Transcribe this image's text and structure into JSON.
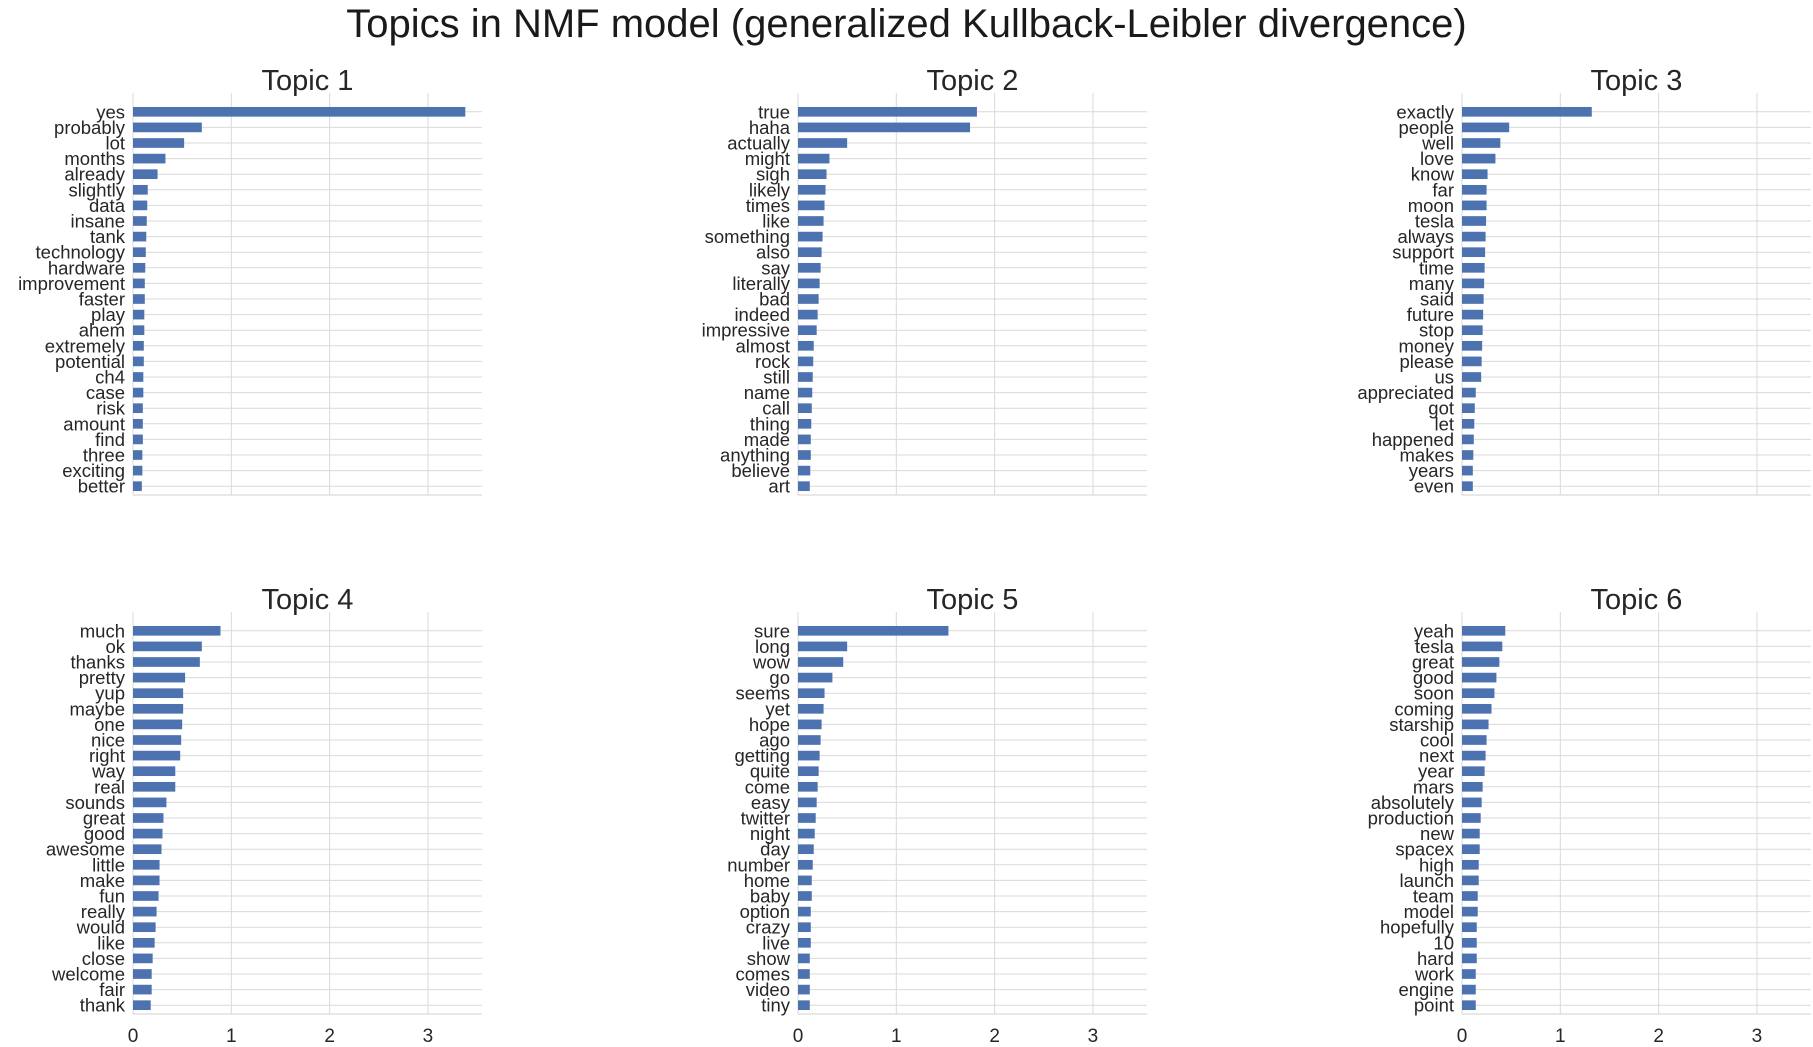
{
  "suptitle": "Topics in NMF model (generalized Kullback-Leibler divergence)",
  "colors": {
    "bar": "#4c72b0",
    "grid": "#d9d9d9",
    "text": "#262626"
  },
  "chart_data": [
    {
      "type": "bar",
      "orientation": "horizontal",
      "title": "Topic 1",
      "xlim": [
        0,
        3.55
      ],
      "xticks": [
        0,
        1,
        2,
        3
      ],
      "show_xticklabels": false,
      "grid": "x",
      "categories": [
        "yes",
        "probably",
        "lot",
        "months",
        "already",
        "slightly",
        "data",
        "insane",
        "tank",
        "technology",
        "hardware",
        "improvement",
        "faster",
        "play",
        "ahem",
        "extremely",
        "potential",
        "ch4",
        "case",
        "risk",
        "amount",
        "find",
        "three",
        "exciting",
        "better"
      ],
      "values": [
        3.38,
        0.7,
        0.52,
        0.33,
        0.25,
        0.15,
        0.145,
        0.14,
        0.135,
        0.13,
        0.125,
        0.12,
        0.12,
        0.115,
        0.115,
        0.11,
        0.11,
        0.105,
        0.105,
        0.1,
        0.1,
        0.1,
        0.095,
        0.095,
        0.09
      ]
    },
    {
      "type": "bar",
      "orientation": "horizontal",
      "title": "Topic 2",
      "xlim": [
        0,
        3.55
      ],
      "xticks": [
        0,
        1,
        2,
        3
      ],
      "show_xticklabels": false,
      "grid": "x",
      "categories": [
        "true",
        "haha",
        "actually",
        "might",
        "sigh",
        "likely",
        "times",
        "like",
        "something",
        "also",
        "say",
        "literally",
        "bad",
        "indeed",
        "impressive",
        "almost",
        "rock",
        "still",
        "name",
        "call",
        "thing",
        "made",
        "anything",
        "believe",
        "art"
      ],
      "values": [
        1.82,
        1.75,
        0.5,
        0.32,
        0.29,
        0.28,
        0.27,
        0.26,
        0.25,
        0.24,
        0.23,
        0.22,
        0.21,
        0.2,
        0.19,
        0.16,
        0.155,
        0.15,
        0.145,
        0.14,
        0.135,
        0.13,
        0.13,
        0.125,
        0.12
      ]
    },
    {
      "type": "bar",
      "orientation": "horizontal",
      "title": "Topic 3",
      "xlim": [
        0,
        3.55
      ],
      "xticks": [
        0,
        1,
        2,
        3
      ],
      "show_xticklabels": false,
      "grid": "x",
      "categories": [
        "exactly",
        "people",
        "well",
        "love",
        "know",
        "far",
        "moon",
        "tesla",
        "always",
        "support",
        "time",
        "many",
        "said",
        "future",
        "stop",
        "money",
        "please",
        "us",
        "appreciated",
        "got",
        "let",
        "happened",
        "makes",
        "years",
        "even"
      ],
      "values": [
        1.32,
        0.48,
        0.39,
        0.34,
        0.26,
        0.25,
        0.25,
        0.245,
        0.24,
        0.235,
        0.23,
        0.225,
        0.22,
        0.215,
        0.21,
        0.205,
        0.2,
        0.195,
        0.14,
        0.13,
        0.125,
        0.12,
        0.115,
        0.11,
        0.11
      ]
    },
    {
      "type": "bar",
      "orientation": "horizontal",
      "title": "Topic 4",
      "xlim": [
        0,
        3.55
      ],
      "xticks": [
        0,
        1,
        2,
        3
      ],
      "show_xticklabels": true,
      "grid": "x",
      "categories": [
        "much",
        "ok",
        "thanks",
        "pretty",
        "yup",
        "maybe",
        "one",
        "nice",
        "right",
        "way",
        "real",
        "sounds",
        "great",
        "good",
        "awesome",
        "little",
        "make",
        "fun",
        "really",
        "would",
        "like",
        "close",
        "welcome",
        "fair",
        "thank"
      ],
      "values": [
        0.89,
        0.7,
        0.68,
        0.53,
        0.51,
        0.51,
        0.5,
        0.49,
        0.48,
        0.43,
        0.43,
        0.34,
        0.31,
        0.3,
        0.29,
        0.27,
        0.27,
        0.26,
        0.24,
        0.23,
        0.22,
        0.2,
        0.19,
        0.19,
        0.18
      ]
    },
    {
      "type": "bar",
      "orientation": "horizontal",
      "title": "Topic 5",
      "xlim": [
        0,
        3.55
      ],
      "xticks": [
        0,
        1,
        2,
        3
      ],
      "show_xticklabels": true,
      "grid": "x",
      "categories": [
        "sure",
        "long",
        "wow",
        "go",
        "seems",
        "yet",
        "hope",
        "ago",
        "getting",
        "quite",
        "come",
        "easy",
        "twitter",
        "night",
        "day",
        "number",
        "home",
        "baby",
        "option",
        "crazy",
        "live",
        "show",
        "comes",
        "video",
        "tiny"
      ],
      "values": [
        1.53,
        0.5,
        0.46,
        0.35,
        0.27,
        0.26,
        0.24,
        0.23,
        0.22,
        0.21,
        0.2,
        0.19,
        0.18,
        0.17,
        0.16,
        0.15,
        0.14,
        0.14,
        0.13,
        0.13,
        0.13,
        0.12,
        0.12,
        0.12,
        0.12
      ]
    },
    {
      "type": "bar",
      "orientation": "horizontal",
      "title": "Topic 6",
      "xlim": [
        0,
        3.55
      ],
      "xticks": [
        0,
        1,
        2,
        3
      ],
      "show_xticklabels": true,
      "grid": "x",
      "categories": [
        "yeah",
        "tesla",
        "great",
        "good",
        "soon",
        "coming",
        "starship",
        "cool",
        "next",
        "year",
        "mars",
        "absolutely",
        "production",
        "new",
        "spacex",
        "high",
        "launch",
        "team",
        "model",
        "hopefully",
        "10",
        "hard",
        "work",
        "engine",
        "point"
      ],
      "values": [
        0.44,
        0.41,
        0.38,
        0.35,
        0.33,
        0.3,
        0.27,
        0.25,
        0.24,
        0.23,
        0.21,
        0.2,
        0.19,
        0.18,
        0.18,
        0.17,
        0.17,
        0.16,
        0.16,
        0.15,
        0.15,
        0.15,
        0.14,
        0.14,
        0.14
      ]
    }
  ]
}
